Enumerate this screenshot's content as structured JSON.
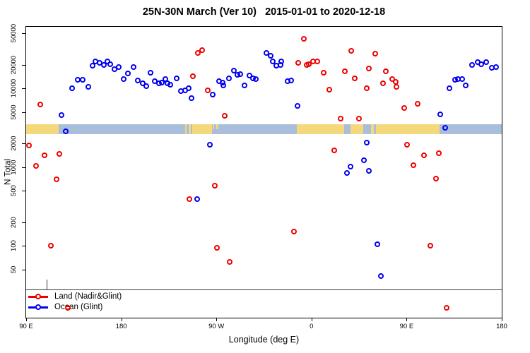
{
  "title": "25N-30N March (Ver 10)   2015-01-01 to 2020-12-18",
  "chart_data": {
    "type": "scatter",
    "title": "25N-30N March (Ver 10)   2015-01-01 to 2020-12-18",
    "xlabel": "Longitude (deg E)",
    "ylabel": "N Total",
    "x_axis": {
      "unit": "deg E (wrapped, 90E eastward to 180)",
      "range_deg": [
        90,
        540
      ],
      "ticks_deg": [
        90,
        180,
        270,
        360,
        450,
        540
      ],
      "tick_labels": [
        "90 E",
        "180",
        "90 W",
        "0",
        "90 E",
        "180"
      ]
    },
    "y_axis": {
      "scale": "log",
      "range": [
        12.2,
        60500
      ],
      "ticks": [
        50000,
        20000,
        10000,
        5000,
        2000,
        1000,
        500,
        200,
        100,
        50
      ],
      "tick_labels": [
        "50000",
        "20000",
        "10000",
        "5000",
        "2000",
        "1000",
        "500",
        "200",
        "100",
        "50"
      ]
    },
    "grid": false,
    "legend_position": "bottom-left",
    "series": [
      {
        "name": "Land (Nadir&Glint)",
        "color": "#ee0000",
        "marker": "open-circle",
        "points": [
          [
            104,
            6200
          ],
          [
            93,
            1850
          ],
          [
            108,
            1380
          ],
          [
            122,
            1440
          ],
          [
            100,
            1020
          ],
          [
            119,
            690
          ],
          [
            114,
            100
          ],
          [
            130,
            16
          ],
          [
            248,
            14000
          ],
          [
            253,
            28000
          ],
          [
            257,
            30500
          ],
          [
            262,
            9300
          ],
          [
            278,
            4400
          ],
          [
            269,
            570
          ],
          [
            245,
            390
          ],
          [
            271,
            94
          ],
          [
            283,
            61
          ],
          [
            353,
            42000
          ],
          [
            348,
            20700
          ],
          [
            356,
            19500
          ],
          [
            358,
            19900
          ],
          [
            362,
            21600
          ],
          [
            366,
            21600
          ],
          [
            372,
            15500
          ],
          [
            377,
            9600
          ],
          [
            388,
            4100
          ],
          [
            392,
            16100
          ],
          [
            398,
            29400
          ],
          [
            401,
            13100
          ],
          [
            405,
            4100
          ],
          [
            413,
            10000
          ],
          [
            415,
            17500
          ],
          [
            421,
            27000
          ],
          [
            428,
            11400
          ],
          [
            431,
            16100
          ],
          [
            437,
            12900
          ],
          [
            440,
            11900
          ],
          [
            441,
            10300
          ],
          [
            448,
            5600
          ],
          [
            461,
            6300
          ],
          [
            451,
            1900
          ],
          [
            467,
            1380
          ],
          [
            481,
            1470
          ],
          [
            457,
            1040
          ],
          [
            478,
            700
          ],
          [
            344,
            150
          ],
          [
            473,
            100
          ],
          [
            488,
            16
          ],
          [
            382,
            1600
          ]
        ]
      },
      {
        "name": "Ocean (Glint)",
        "color": "#0000ee",
        "marker": "open-circle",
        "points": [
          [
            124,
            4500
          ],
          [
            128,
            2800
          ],
          [
            134,
            10000
          ],
          [
            139,
            12600
          ],
          [
            144,
            12600
          ],
          [
            149,
            10300
          ],
          [
            153,
            19100
          ],
          [
            156,
            21600
          ],
          [
            160,
            20700
          ],
          [
            164,
            19500
          ],
          [
            167,
            21600
          ],
          [
            170,
            19900
          ],
          [
            174,
            17200
          ],
          [
            178,
            18300
          ],
          [
            183,
            12900
          ],
          [
            187,
            15200
          ],
          [
            192,
            18300
          ],
          [
            196,
            12400
          ],
          [
            201,
            11400
          ],
          [
            204,
            10500
          ],
          [
            208,
            15500
          ],
          [
            212,
            12200
          ],
          [
            216,
            11400
          ],
          [
            219,
            11600
          ],
          [
            222,
            12900
          ],
          [
            224,
            11400
          ],
          [
            227,
            11000
          ],
          [
            233,
            13300
          ],
          [
            237,
            9100
          ],
          [
            241,
            9300
          ],
          [
            244,
            9900
          ],
          [
            247,
            7400
          ],
          [
            267,
            8300
          ],
          [
            273,
            12200
          ],
          [
            276,
            11600
          ],
          [
            277,
            10800
          ],
          [
            282,
            13300
          ],
          [
            287,
            16500
          ],
          [
            290,
            14600
          ],
          [
            293,
            14900
          ],
          [
            297,
            10800
          ],
          [
            302,
            14300
          ],
          [
            305,
            13300
          ],
          [
            308,
            13000
          ],
          [
            264,
            1900
          ],
          [
            252,
            390
          ],
          [
            318,
            28000
          ],
          [
            322,
            25500
          ],
          [
            324,
            21600
          ],
          [
            327,
            19100
          ],
          [
            331,
            19500
          ],
          [
            332,
            21600
          ],
          [
            338,
            12200
          ],
          [
            341,
            12400
          ],
          [
            347,
            5900
          ],
          [
            423,
            103
          ],
          [
            426,
            41
          ],
          [
            397,
            1000
          ],
          [
            394,
            830
          ],
          [
            410,
            1200
          ],
          [
            413,
            2000
          ],
          [
            415,
            880
          ],
          [
            487,
            3100
          ],
          [
            482,
            4580
          ],
          [
            491,
            9900
          ],
          [
            496,
            12600
          ],
          [
            499,
            12900
          ],
          [
            503,
            12900
          ],
          [
            506,
            10800
          ],
          [
            512,
            19500
          ],
          [
            518,
            21100
          ],
          [
            521,
            19900
          ],
          [
            526,
            21100
          ],
          [
            531,
            17900
          ],
          [
            535,
            18300
          ]
        ]
      }
    ],
    "land_ocean_strip": {
      "description": "horizontal land/ocean map strip across all longitudes",
      "y_value_range": [
        2630,
        3520
      ],
      "ocean_color": "#a9beda",
      "land_color": "#f6d87c",
      "land_segments_deg": [
        [
          90,
          121
        ],
        [
          240.5,
          242
        ],
        [
          243.5,
          246
        ],
        [
          247,
          266
        ],
        [
          346,
          391
        ],
        [
          397,
          409
        ],
        [
          416,
          419
        ],
        [
          421,
          481
        ]
      ],
      "land_chips_deg": [
        [
          266.5,
          268
        ],
        [
          270,
          272
        ]
      ]
    },
    "extra_lines": {
      "hline_n": 28,
      "vseg": {
        "deg": 109.4,
        "n_from": 37.3,
        "n_to": 28
      }
    }
  },
  "legend": {
    "items": [
      {
        "label": "Land (Nadir&Glint)",
        "color": "#ee0000"
      },
      {
        "label": "Ocean (Glint)",
        "color": "#0000ee"
      }
    ]
  }
}
